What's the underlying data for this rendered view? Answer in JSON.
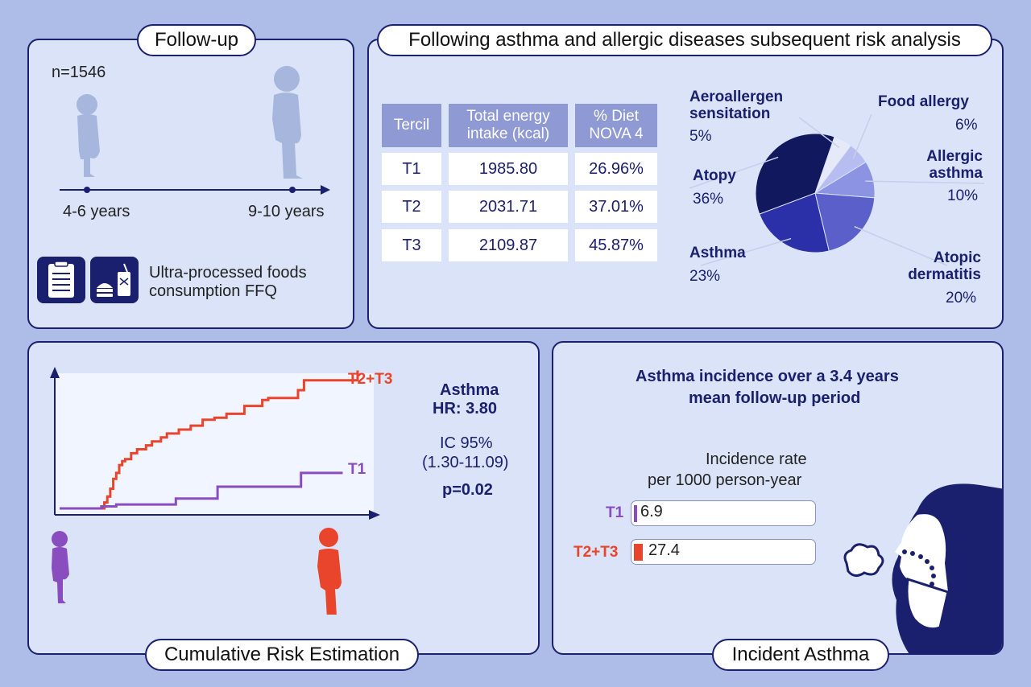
{
  "followup": {
    "title": "Follow-up",
    "n": "n=1546",
    "age_start": "4-6 years",
    "age_end": "9-10 years",
    "ffq_line1": "Ultra-processed foods",
    "ffq_line2": "consumption FFQ",
    "icons": [
      "clipboard-icon",
      "fast-food-icon"
    ]
  },
  "risk": {
    "title": "Following asthma and allergic diseases subsequent risk analysis",
    "table": {
      "headers": [
        "Tercil",
        "Total energy intake (kcal)",
        "% Diet NOVA 4"
      ],
      "header_lines": [
        [
          "Tercil"
        ],
        [
          "Total energy",
          "intake (kcal)"
        ],
        [
          "% Diet",
          "NOVA 4"
        ]
      ],
      "rows": [
        [
          "T1",
          "1985.80",
          "26.96%"
        ],
        [
          "T2",
          "2031.71",
          "37.01%"
        ],
        [
          "T3",
          "2109.87",
          "45.87%"
        ]
      ]
    },
    "pie_labels": {
      "aeroallergen": [
        "Aeroallergen",
        "sensitation"
      ],
      "food_allergy": [
        "Food allergy"
      ],
      "allergic_asthma": [
        "Allergic",
        "asthma"
      ],
      "atopic_dermatitis": [
        "Atopic",
        "dermatitis"
      ],
      "asthma": [
        "Asthma"
      ],
      "atopy": [
        "Atopy"
      ]
    },
    "pie_pcts": {
      "aeroallergen": "5%",
      "food_allergy": "6%",
      "allergic_asthma": "10%",
      "atopic_dermatitis": "20%",
      "asthma": "23%",
      "atopy": "36%"
    }
  },
  "chart_data": [
    {
      "type": "pie",
      "categories": [
        "Aeroallergen sensitation",
        "Food allergy",
        "Allergic asthma",
        "Atopic dermatitis",
        "Asthma",
        "Atopy"
      ],
      "values": [
        5,
        6,
        10,
        20,
        23,
        36
      ],
      "colors": [
        "#e6e9f8",
        "#b7bdf0",
        "#8c93e3",
        "#5a5fc9",
        "#2b2fa8",
        "#12185e"
      ]
    },
    {
      "type": "line",
      "subtype": "step",
      "series": [
        {
          "name": "T2+T3",
          "color": "#e8452c",
          "x": [
            0,
            14,
            15,
            16,
            17,
            18,
            19,
            20,
            21,
            22,
            24,
            26,
            29,
            31,
            34,
            36,
            40,
            44,
            48,
            52,
            56,
            62,
            68,
            70,
            80,
            82,
            100
          ],
          "y": [
            0,
            0,
            3,
            6,
            10,
            15,
            18,
            22,
            24,
            25,
            28,
            30,
            32,
            34,
            36,
            38,
            40,
            42,
            45,
            46,
            48,
            52,
            55,
            56,
            60,
            65,
            70
          ]
        },
        {
          "name": "T1",
          "color": "#8a4dbf",
          "x": [
            0,
            14,
            19,
            39,
            53,
            81,
            95
          ],
          "y": [
            0,
            1,
            2,
            5,
            11,
            18,
            18
          ]
        }
      ]
    },
    {
      "type": "bar",
      "orientation": "horizontal",
      "categories": [
        "T1",
        "T2+T3"
      ],
      "values": [
        6.9,
        27.4
      ],
      "colors": [
        "#8a4dbf",
        "#e8452c"
      ]
    }
  ],
  "cumulative": {
    "title": "Cumulative Risk Estimation",
    "series_t2t3": "T2+T3",
    "series_t1": "T1",
    "stat_title": "Asthma",
    "hr": "HR: 3.80",
    "ic_label": "IC 95%",
    "ic_range": "(1.30-11.09)",
    "p": "p=0.02",
    "colors": {
      "t2t3": "#e8452c",
      "t1": "#8a4dbf"
    }
  },
  "incidence": {
    "title": "Incident Asthma",
    "heading_line1": "Asthma incidence over a 3.4 years",
    "heading_line2": "mean follow-up period",
    "rate_line1": "Incidence rate",
    "rate_line2": "per 1000 person-year",
    "bars": [
      {
        "label": "T1",
        "value": "6.9",
        "color": "#8a4dbf"
      },
      {
        "label": "T2+T3",
        "value": "27.4",
        "color": "#e8452c"
      }
    ]
  }
}
